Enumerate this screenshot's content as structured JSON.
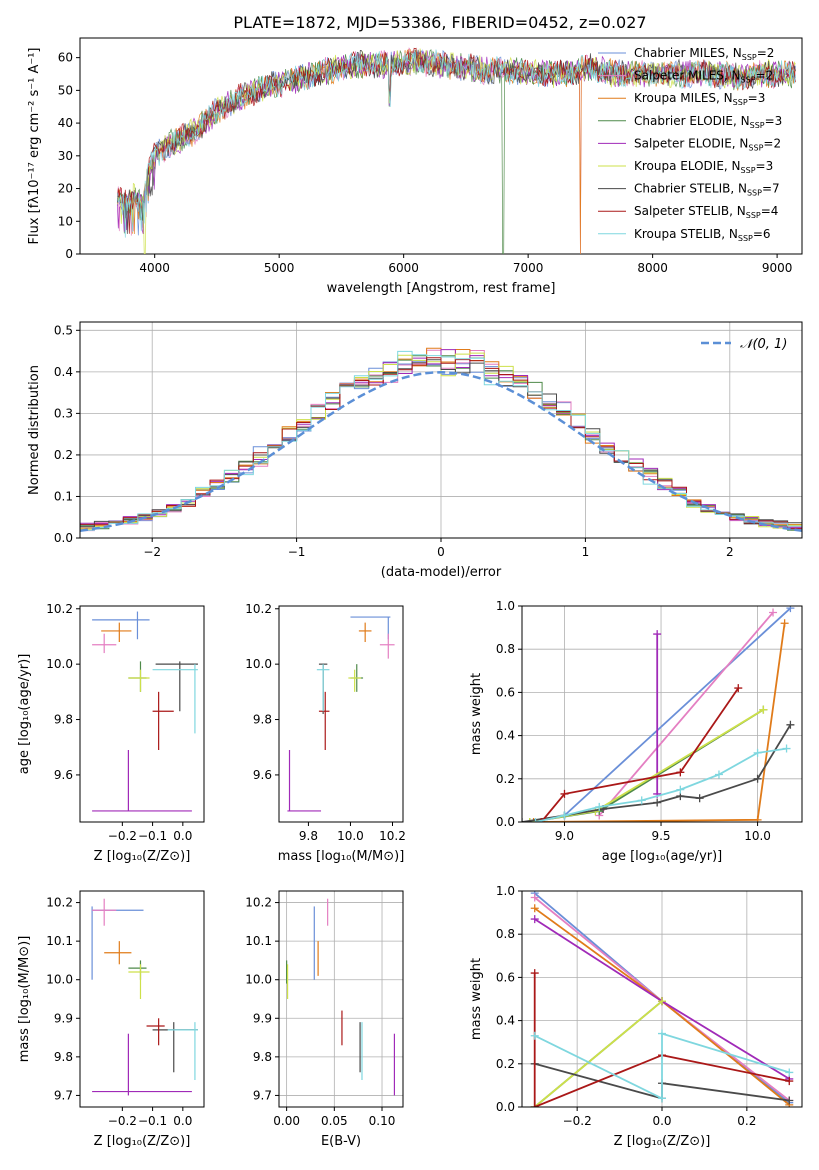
{
  "figure": {
    "title": "PLATE=1872, MJD=53386, FIBERID=0452, z=0.027"
  },
  "colors": {
    "chabrier_miles": "#6a8fd8",
    "salpeter_miles": "#e47fc2",
    "kroupa_miles": "#e07b1a",
    "chabrier_elodie": "#4f8a4a",
    "salpeter_elodie": "#a02ab8",
    "kroupa_elodie": "#cde04a",
    "chabrier_stelib": "#4a4a4a",
    "salpeter_stelib": "#aa1818",
    "kroupa_stelib": "#7fd7df",
    "normal": "#5b8fd6",
    "grid": "#b0b0b0"
  },
  "chart_data": [
    {
      "id": "spectrum",
      "type": "line",
      "xlabel": "wavelength [Angstrom, rest frame]",
      "ylabel": "Flux [fλ10⁻¹⁷ erg cm⁻² s⁻¹ A⁻¹]",
      "xlim": [
        3400,
        9200
      ],
      "ylim": [
        0,
        66
      ],
      "xticks": [
        "4000",
        "5000",
        "6000",
        "7000",
        "8000",
        "9000"
      ],
      "yticks": [
        "0",
        "10",
        "20",
        "30",
        "40",
        "50",
        "60"
      ],
      "legend": "upper-right",
      "continuum_anchors": {
        "x": [
          3700,
          3780,
          3850,
          3900,
          3950,
          4000,
          4100,
          4200,
          4300,
          4400,
          4500,
          4700,
          4900,
          5100,
          5300,
          5500,
          5700,
          5900,
          6100,
          6300,
          6500,
          6700,
          6900,
          7100,
          7300,
          7500,
          7700,
          7900,
          8100,
          8300,
          8500,
          8700,
          8900,
          9150
        ],
        "y": [
          17,
          15,
          18,
          14,
          25,
          30,
          33,
          35,
          37,
          40,
          44,
          48,
          51,
          53,
          55,
          57,
          58,
          58,
          59,
          58,
          57,
          56,
          56,
          55,
          55,
          57,
          55,
          55,
          55,
          55,
          55,
          54,
          55,
          55
        ]
      },
      "series": [
        {
          "name": "Chabrier MILES, N_SSP=2",
          "color_key": "chabrier_miles"
        },
        {
          "name": "Salpeter MILES, N_SSP=2",
          "color_key": "salpeter_miles",
          "drop_at": 7420
        },
        {
          "name": "Kroupa MILES, N_SSP=3",
          "color_key": "kroupa_miles",
          "drop_at": 7420
        },
        {
          "name": "Chabrier ELODIE, N_SSP=3",
          "color_key": "chabrier_elodie",
          "drop_at": 6800
        },
        {
          "name": "Salpeter ELODIE, N_SSP=2",
          "color_key": "salpeter_elodie"
        },
        {
          "name": "Kroupa ELODIE, N_SSP=3",
          "color_key": "kroupa_elodie",
          "drop_at": 3920
        },
        {
          "name": "Chabrier STELIB, N_SSP=7",
          "color_key": "chabrier_stelib"
        },
        {
          "name": "Salpeter STELIB, N_SSP=4",
          "color_key": "salpeter_stelib"
        },
        {
          "name": "Kroupa STELIB, N_SSP=6",
          "color_key": "kroupa_stelib"
        }
      ]
    },
    {
      "id": "residual_hist",
      "type": "bar",
      "xlabel": "(data-model)/error",
      "ylabel": "Normed distribution",
      "xlim": [
        -2.5,
        2.5
      ],
      "ylim": [
        0,
        0.52
      ],
      "xticks": [
        "−2",
        "−1",
        "0",
        "1",
        "2"
      ],
      "yticks": [
        "0.0",
        "0.1",
        "0.2",
        "0.3",
        "0.4",
        "0.5"
      ],
      "bin_width": 0.1,
      "legend": "upper-right",
      "normal_label": "𝒩(0, 1)",
      "normal_color_key": "normal",
      "histogram_color_keys": [
        "chabrier_miles",
        "salpeter_miles",
        "kroupa_miles",
        "chabrier_elodie",
        "salpeter_elodie",
        "kroupa_elodie",
        "chabrier_stelib",
        "salpeter_stelib",
        "kroupa_stelib"
      ]
    },
    {
      "id": "age_vs_z",
      "type": "scatter",
      "xlabel": "Z [log₁₀(Z/Z⊙)]",
      "ylabel": "age  [log₁₀(age/yr)]",
      "xlim": [
        -0.34,
        0.07
      ],
      "ylim": [
        9.43,
        10.21
      ],
      "xticks": [
        -0.2,
        -0.1,
        0.0
      ],
      "xtick_labels": [
        "−0.2",
        "−0.1",
        "0.0"
      ],
      "yticks": [
        9.6,
        9.8,
        10.0,
        10.2
      ],
      "ytick_labels": [
        "9.6",
        "9.8",
        "10.0",
        "10.2"
      ],
      "points": [
        {
          "c": "chabrier_miles",
          "x": -0.15,
          "y": 10.16,
          "xlo": -0.3,
          "xhi": -0.11,
          "ylo": 10.09,
          "yhi": 10.19
        },
        {
          "c": "salpeter_miles",
          "x": -0.26,
          "y": 10.07,
          "xlo": -0.3,
          "xhi": -0.22,
          "ylo": 10.04,
          "yhi": 10.11
        },
        {
          "c": "kroupa_miles",
          "x": -0.21,
          "y": 10.12,
          "xlo": -0.27,
          "xhi": -0.17,
          "ylo": 10.08,
          "yhi": 10.15
        },
        {
          "c": "chabrier_elodie",
          "x": -0.14,
          "y": 9.95,
          "xlo": -0.18,
          "xhi": -0.12,
          "ylo": 9.9,
          "yhi": 10.01
        },
        {
          "c": "salpeter_elodie",
          "x": -0.18,
          "y": 9.47,
          "xlo": -0.3,
          "xhi": 0.03,
          "ylo": 9.47,
          "yhi": 9.69
        },
        {
          "c": "kroupa_elodie",
          "x": -0.14,
          "y": 9.95,
          "xlo": -0.18,
          "xhi": -0.11,
          "ylo": 9.9,
          "yhi": 9.98
        },
        {
          "c": "chabrier_stelib",
          "x": -0.01,
          "y": 10.0,
          "xlo": -0.09,
          "xhi": 0.05,
          "ylo": 9.83,
          "yhi": 10.01
        },
        {
          "c": "salpeter_stelib",
          "x": -0.08,
          "y": 9.83,
          "xlo": -0.1,
          "xhi": -0.03,
          "ylo": 9.69,
          "yhi": 9.9
        },
        {
          "c": "kroupa_stelib",
          "x": 0.04,
          "y": 9.98,
          "xlo": -0.1,
          "xhi": 0.05,
          "ylo": 9.75,
          "yhi": 10.0
        }
      ]
    },
    {
      "id": "age_vs_mass",
      "type": "scatter",
      "xlabel": "mass [log₁₀(M/M⊙)]",
      "ylabel": "",
      "xlim": [
        9.66,
        10.25
      ],
      "ylim": [
        9.43,
        10.21
      ],
      "xticks": [
        9.8,
        10.0,
        10.2
      ],
      "xtick_labels": [
        "9.8",
        "10.0",
        "10.2"
      ],
      "yticks": [
        9.6,
        9.8,
        10.0,
        10.2
      ],
      "ytick_labels": [
        "9.6",
        "9.8",
        "10.0",
        "10.2"
      ],
      "points": [
        {
          "c": "chabrier_miles",
          "x": 10.18,
          "y": 10.17,
          "xlo": 10.0,
          "xhi": 10.19,
          "ylo": 10.09,
          "yhi": 10.17
        },
        {
          "c": "salpeter_miles",
          "x": 10.18,
          "y": 10.07,
          "xlo": 10.14,
          "xhi": 10.21,
          "ylo": 10.02,
          "yhi": 10.11
        },
        {
          "c": "kroupa_miles",
          "x": 10.07,
          "y": 10.12,
          "xlo": 10.04,
          "xhi": 10.1,
          "ylo": 10.08,
          "yhi": 10.15
        },
        {
          "c": "chabrier_elodie",
          "x": 10.03,
          "y": 9.95,
          "xlo": 10.0,
          "xhi": 10.06,
          "ylo": 9.9,
          "yhi": 10.0
        },
        {
          "c": "salpeter_elodie",
          "x": 9.71,
          "y": 9.47,
          "xlo": 9.7,
          "xhi": 9.86,
          "ylo": 9.47,
          "yhi": 9.69
        },
        {
          "c": "kroupa_elodie",
          "x": 10.02,
          "y": 9.95,
          "xlo": 9.99,
          "xhi": 10.05,
          "ylo": 9.9,
          "yhi": 9.98
        },
        {
          "c": "chabrier_stelib",
          "x": 9.87,
          "y": 10.0,
          "xlo": 9.85,
          "xhi": 9.89,
          "ylo": 9.82,
          "yhi": 10.0
        },
        {
          "c": "salpeter_stelib",
          "x": 9.88,
          "y": 9.83,
          "xlo": 9.85,
          "xhi": 9.9,
          "ylo": 9.69,
          "yhi": 9.9
        },
        {
          "c": "kroupa_stelib",
          "x": 9.87,
          "y": 9.98,
          "xlo": 9.84,
          "xhi": 9.9,
          "ylo": 9.83,
          "yhi": 10.0
        }
      ]
    },
    {
      "id": "massweight_vs_age",
      "type": "line",
      "xlabel": "age  [log₁₀(age/yr)]",
      "ylabel": "mass weight",
      "xlim": [
        8.78,
        10.23
      ],
      "ylim": [
        0,
        1
      ],
      "xticks": [
        9.0,
        9.5,
        10.0
      ],
      "xtick_labels": [
        "9.0",
        "9.5",
        "10.0"
      ],
      "yticks": [
        0,
        0.2,
        0.4,
        0.6,
        0.8,
        1.0
      ],
      "ytick_labels": [
        "0.0",
        "0.2",
        "0.4",
        "0.6",
        "0.8",
        "1.0"
      ],
      "series": [
        {
          "c": "chabrier_miles",
          "x": [
            9.0,
            10.17
          ],
          "y": [
            0.03,
            0.99
          ]
        },
        {
          "c": "salpeter_miles",
          "x": [
            9.18,
            10.08
          ],
          "y": [
            0.03,
            0.97
          ]
        },
        {
          "c": "kroupa_miles",
          "x": [
            8.84,
            10.0,
            10.14
          ],
          "y": [
            0.0,
            0.01,
            0.92
          ]
        },
        {
          "c": "chabrier_elodie",
          "x": [
            8.82,
            9.18,
            10.03
          ],
          "y": [
            0.0,
            0.05,
            0.52
          ]
        },
        {
          "c": "salpeter_elodie",
          "x": [
            9.48,
            9.48
          ],
          "y": [
            0.13,
            0.87
          ]
        },
        {
          "c": "kroupa_elodie",
          "x": [
            8.82,
            9.16,
            10.03
          ],
          "y": [
            0.0,
            0.05,
            0.52
          ]
        },
        {
          "c": "chabrier_stelib",
          "x": [
            8.78,
            9.0,
            9.2,
            9.48,
            9.6,
            9.7,
            10.0,
            10.17
          ],
          "y": [
            0.0,
            0.03,
            0.06,
            0.09,
            0.12,
            0.11,
            0.2,
            0.45
          ]
        },
        {
          "c": "salpeter_stelib",
          "x": [
            8.88,
            9.0,
            9.6,
            9.9
          ],
          "y": [
            0.0,
            0.13,
            0.23,
            0.62
          ]
        },
        {
          "c": "kroupa_stelib",
          "x": [
            8.85,
            9.0,
            9.18,
            9.4,
            9.6,
            9.8,
            10.0,
            10.15
          ],
          "y": [
            0.0,
            0.03,
            0.07,
            0.1,
            0.15,
            0.22,
            0.32,
            0.34
          ]
        }
      ]
    },
    {
      "id": "mass_vs_z",
      "type": "scatter",
      "xlabel": "Z [log₁₀(Z/Z⊙)]",
      "ylabel": "mass [log₁₀(M/M⊙)]",
      "xlim": [
        -0.34,
        0.07
      ],
      "ylim": [
        9.67,
        10.23
      ],
      "xticks": [
        -0.2,
        -0.1,
        0.0
      ],
      "xtick_labels": [
        "−0.2",
        "−0.1",
        "0.0"
      ],
      "yticks": [
        9.7,
        9.8,
        9.9,
        10.0,
        10.1,
        10.2
      ],
      "ytick_labels": [
        "9.7",
        "9.8",
        "9.9",
        "10.0",
        "10.1",
        "10.2"
      ],
      "points": [
        {
          "c": "chabrier_miles",
          "x": -0.3,
          "y": 10.18,
          "xlo": -0.3,
          "xhi": -0.13,
          "ylo": 10.0,
          "yhi": 10.19
        },
        {
          "c": "salpeter_miles",
          "x": -0.26,
          "y": 10.18,
          "xlo": -0.3,
          "xhi": -0.22,
          "ylo": 10.14,
          "yhi": 10.21
        },
        {
          "c": "kroupa_miles",
          "x": -0.21,
          "y": 10.07,
          "xlo": -0.26,
          "xhi": -0.17,
          "ylo": 10.04,
          "yhi": 10.1
        },
        {
          "c": "chabrier_elodie",
          "x": -0.14,
          "y": 10.03,
          "xlo": -0.18,
          "xhi": -0.12,
          "ylo": 10.0,
          "yhi": 10.05
        },
        {
          "c": "salpeter_elodie",
          "x": -0.18,
          "y": 9.71,
          "xlo": -0.3,
          "xhi": 0.03,
          "ylo": 9.7,
          "yhi": 9.86
        },
        {
          "c": "kroupa_elodie",
          "x": -0.14,
          "y": 10.02,
          "xlo": -0.18,
          "xhi": -0.11,
          "ylo": 9.95,
          "yhi": 10.04
        },
        {
          "c": "chabrier_stelib",
          "x": -0.03,
          "y": 9.87,
          "xlo": -0.1,
          "xhi": 0.05,
          "ylo": 9.76,
          "yhi": 9.89
        },
        {
          "c": "salpeter_stelib",
          "x": -0.08,
          "y": 9.88,
          "xlo": -0.12,
          "xhi": -0.06,
          "ylo": 9.83,
          "yhi": 9.9
        },
        {
          "c": "kroupa_stelib",
          "x": 0.04,
          "y": 9.87,
          "xlo": -0.05,
          "xhi": 0.05,
          "ylo": 9.74,
          "yhi": 9.89
        }
      ]
    },
    {
      "id": "mass_vs_ebv",
      "type": "scatter",
      "xlabel": "E(B-V)",
      "ylabel": "",
      "xlim": [
        -0.008,
        0.122
      ],
      "ylim": [
        9.67,
        10.23
      ],
      "xticks": [
        0.0,
        0.05,
        0.1
      ],
      "xtick_labels": [
        "0.00",
        "0.05",
        "0.10"
      ],
      "yticks": [
        9.7,
        9.8,
        9.9,
        10.0,
        10.1,
        10.2
      ],
      "ytick_labels": [
        "9.7",
        "9.8",
        "9.9",
        "10.0",
        "10.1",
        "10.2"
      ],
      "points": [
        {
          "c": "chabrier_miles",
          "x": 0.029,
          "y": 10.18,
          "ylo": 10.0,
          "yhi": 10.19
        },
        {
          "c": "salpeter_miles",
          "x": 0.043,
          "y": 10.18,
          "ylo": 10.14,
          "yhi": 10.21
        },
        {
          "c": "kroupa_miles",
          "x": 0.033,
          "y": 10.07,
          "ylo": 10.01,
          "yhi": 10.1
        },
        {
          "c": "chabrier_elodie",
          "x": 0.0,
          "y": 10.03,
          "ylo": 9.99,
          "yhi": 10.05
        },
        {
          "c": "salpeter_elodie",
          "x": 0.113,
          "y": 9.71,
          "ylo": 9.7,
          "yhi": 9.86
        },
        {
          "c": "kroupa_elodie",
          "x": 0.001,
          "y": 10.02,
          "ylo": 9.95,
          "yhi": 10.04
        },
        {
          "c": "chabrier_stelib",
          "x": 0.077,
          "y": 9.87,
          "ylo": 9.76,
          "yhi": 9.89
        },
        {
          "c": "salpeter_stelib",
          "x": 0.058,
          "y": 9.88,
          "ylo": 9.83,
          "yhi": 9.92
        },
        {
          "c": "kroupa_stelib",
          "x": 0.079,
          "y": 9.87,
          "ylo": 9.74,
          "yhi": 9.89
        }
      ]
    },
    {
      "id": "massweight_vs_z",
      "type": "line",
      "xlabel": "Z [log₁₀(Z/Z⊙)]",
      "ylabel": "mass weight",
      "xlim": [
        -0.33,
        0.33
      ],
      "ylim": [
        0,
        1
      ],
      "xticks": [
        -0.2,
        0.0,
        0.2
      ],
      "xtick_labels": [
        "−0.2",
        "0.0",
        "0.2"
      ],
      "yticks": [
        0,
        0.2,
        0.4,
        0.6,
        0.8,
        1.0
      ],
      "ytick_labels": [
        "0.0",
        "0.2",
        "0.4",
        "0.6",
        "0.8",
        "1.0"
      ],
      "series": [
        {
          "c": "chabrier_miles",
          "x": [
            -0.3,
            0.0,
            0.3
          ],
          "y": [
            0.99,
            0.49,
            0.02
          ]
        },
        {
          "c": "salpeter_miles",
          "x": [
            -0.3,
            0.0,
            0.3
          ],
          "y": [
            0.97,
            0.49,
            0.03
          ]
        },
        {
          "c": "kroupa_miles",
          "x": [
            -0.3,
            0.0,
            0.3
          ],
          "y": [
            0.92,
            0.49,
            0.01
          ]
        },
        {
          "c": "chabrier_elodie",
          "x": [
            -0.3,
            0.0
          ],
          "y": [
            0.0,
            0.49
          ]
        },
        {
          "c": "salpeter_elodie",
          "x": [
            -0.3,
            0.0,
            0.3
          ],
          "y": [
            0.87,
            0.49,
            0.13
          ]
        },
        {
          "c": "kroupa_elodie",
          "x": [
            -0.3,
            0.0
          ],
          "y": [
            0.0,
            0.49
          ]
        },
        {
          "c": "chabrier_stelib",
          "x": [
            -0.3,
            0.0,
            0.0,
            0.3
          ],
          "y": [
            0.2,
            0.04,
            0.11,
            0.03
          ]
        },
        {
          "c": "salpeter_stelib",
          "x": [
            -0.3,
            -0.3,
            0.0,
            0.3
          ],
          "y": [
            0.62,
            0.0,
            0.24,
            0.12
          ]
        },
        {
          "c": "kroupa_stelib",
          "x": [
            -0.3,
            0.0,
            0.0,
            0.3
          ],
          "y": [
            0.33,
            0.04,
            0.34,
            0.16
          ]
        }
      ]
    }
  ]
}
